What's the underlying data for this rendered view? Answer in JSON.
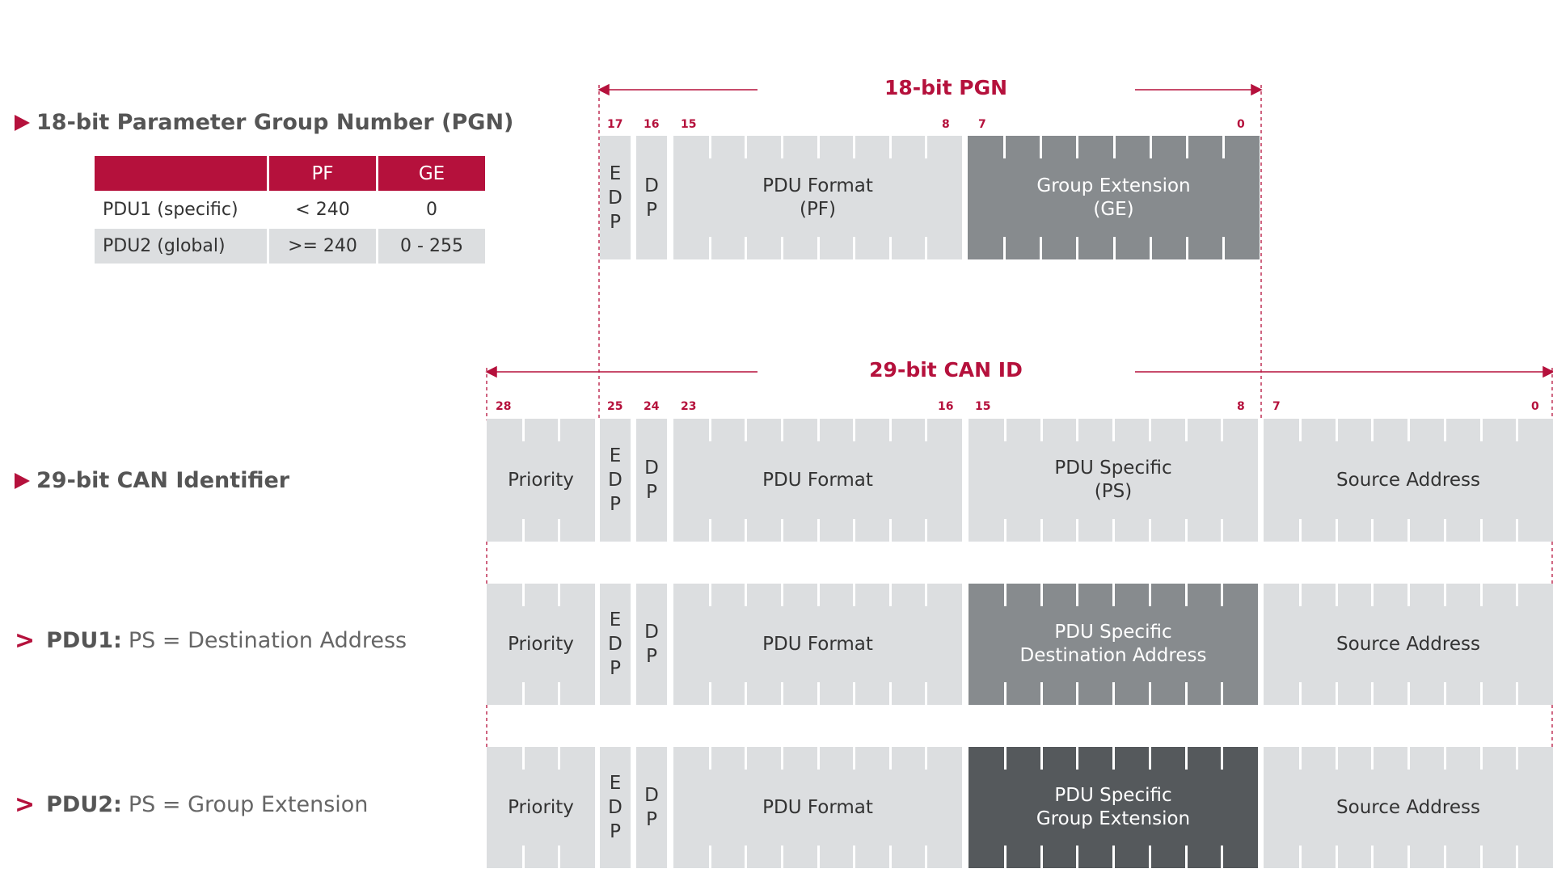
{
  "headings": {
    "pgn": "18-bit Parameter Group Number (PGN)",
    "canid": "29-bit CAN Identifier",
    "pdu1_bold": "PDU1:",
    "pdu1_light": "PS = Destination  Address",
    "pdu2_bold": "PDU2:",
    "pdu2_light": "PS = Group Extension",
    "chevron": ">"
  },
  "table": {
    "header": [
      "",
      "PF",
      "GE"
    ],
    "rows": [
      [
        "PDU1 (specific)",
        "< 240",
        "0"
      ],
      [
        "PDU2 (global)",
        ">= 240",
        "0 - 255"
      ]
    ]
  },
  "pgn_register": {
    "title": "18-bit PGN",
    "bits": {
      "b17": "17",
      "b16": "16",
      "b15": "15",
      "b8": "8",
      "b7": "7",
      "b0": "0"
    },
    "edp": [
      "E",
      "D",
      "P"
    ],
    "dp": [
      "D",
      "P"
    ],
    "pf_line1": "PDU Format",
    "pf_line2": "(PF)",
    "ge_line1": "Group Extension",
    "ge_line2": "(GE)"
  },
  "can_register": {
    "title": "29-bit CAN ID",
    "bits": {
      "b28": "28",
      "b25": "25",
      "b24": "24",
      "b23": "23",
      "b16": "16",
      "b15": "15",
      "b8": "8",
      "b7": "7",
      "b0": "0"
    },
    "priority": "Priority",
    "edp": [
      "E",
      "D",
      "P"
    ],
    "dp": [
      "D",
      "P"
    ],
    "pdu_format": "PDU Format",
    "ps_line1": "PDU Specific",
    "ps_line2": "(PS)",
    "source_address": "Source Address"
  },
  "pdu1_register": {
    "priority": "Priority",
    "edp": [
      "E",
      "D",
      "P"
    ],
    "dp": [
      "D",
      "P"
    ],
    "pdu_format": "PDU Format",
    "ps_line1": "PDU Specific",
    "ps_line2": "Destination Address",
    "source_address": "Source Address"
  },
  "pdu2_register": {
    "priority": "Priority",
    "edp": [
      "E",
      "D",
      "P"
    ],
    "dp": [
      "D",
      "P"
    ],
    "pdu_format": "PDU Format",
    "ps_line1": "PDU Specific",
    "ps_line2": "Group Extension",
    "source_address": "Source Address"
  },
  "colors": {
    "accent": "#b5113c",
    "light_block": "#dcdee0",
    "mid_block": "#878b8e",
    "dark_block": "#55595c"
  }
}
